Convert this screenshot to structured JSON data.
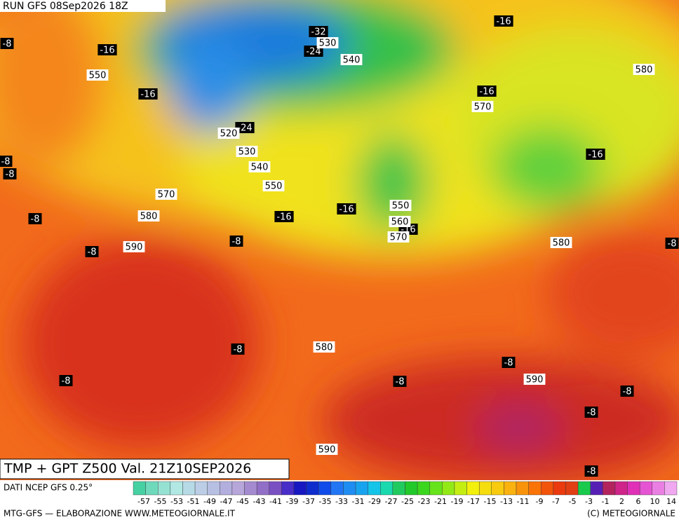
{
  "header": {
    "run": "RUN GFS 08Sep2026 18Z"
  },
  "map": {
    "labels": [
      "-8",
      "-16",
      "-16",
      "-8",
      "-8",
      "-8",
      "-8",
      "-8",
      "-16",
      "-16",
      "-32",
      "-24",
      "-24",
      "-16",
      "-16",
      "-16",
      "-16",
      "-8",
      "-8",
      "-8",
      "-8",
      "-8",
      "-8",
      "-8",
      "-8",
      "550",
      "530",
      "540",
      "580",
      "570",
      "520",
      "530",
      "540",
      "550",
      "570",
      "580",
      "590",
      "550",
      "560",
      "570",
      "580",
      "580",
      "590",
      "590"
    ]
  },
  "footer": {
    "title": "TMP + GPT Z500 Val. 21Z10SEP2026",
    "source": "DATI NCEP GFS 0.25°",
    "scale": [
      "-57",
      "-55",
      "-53",
      "-51",
      "-49",
      "-47",
      "-45",
      "-43",
      "-41",
      "-39",
      "-37",
      "-35",
      "-33",
      "-31",
      "-29",
      "-27",
      "-25",
      "-23",
      "-21",
      "-19",
      "-17",
      "-15",
      "-13",
      "-11",
      "-9",
      "-7",
      "-5",
      "-3",
      "-1",
      "2",
      "6",
      "10",
      "14"
    ],
    "credit": "MTG-GFS — ELABORAZIONE WWW.METEOGIORNALE.IT",
    "copyright": "(C) METEOGIORNALE"
  }
}
